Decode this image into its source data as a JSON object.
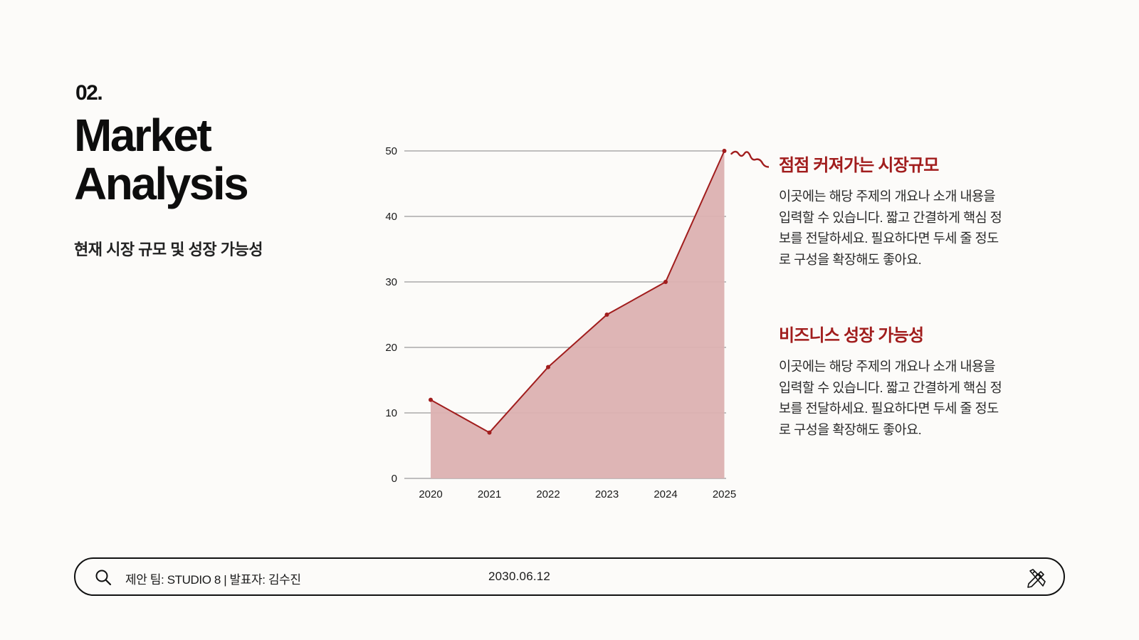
{
  "slide": {
    "number": "02.",
    "title": "Market Analysis",
    "subtitle": "현재 시장 규모 및 성장 가능성"
  },
  "sections": [
    {
      "heading": "점점 커져가는 시장규모",
      "body": "이곳에는 해당 주제의 개요나 소개 내용을\n입력할 수 있습니다. 짧고 간결하게 핵심 정\n보를 전달하세요. 필요하다면 두세 줄 정도\n로 구성을 확장해도 좋아요."
    },
    {
      "heading": "비즈니스 성장 가능성",
      "body": "이곳에는 해당 주제의 개요나 소개 내용을\n입력할 수 있습니다. 짧고 간결하게 핵심 정\n보를 전달하세요. 필요하다면 두세 줄 정도\n로 구성을 확장해도 좋아요."
    }
  ],
  "footer": {
    "info": "제안 팀: STUDIO 8 | 발표자: 김수진",
    "date": "2030.06.12",
    "search_icon": "search-icon",
    "tool_icon": "pencil-ruler-icon"
  },
  "colors": {
    "accent": "#a11d1d",
    "area_fill": "#dcb1b1",
    "line": "#a11d1d",
    "grid": "#9a9a9a"
  },
  "chart_data": {
    "type": "area",
    "x": [
      "2020",
      "2021",
      "2022",
      "2023",
      "2024",
      "2025"
    ],
    "series": [
      {
        "values": [
          12,
          7,
          17,
          25,
          30,
          50
        ]
      }
    ],
    "yticks": [
      0,
      10,
      20,
      30,
      40,
      50
    ],
    "ylim": [
      0,
      50
    ],
    "grid": true,
    "legend": "none"
  }
}
